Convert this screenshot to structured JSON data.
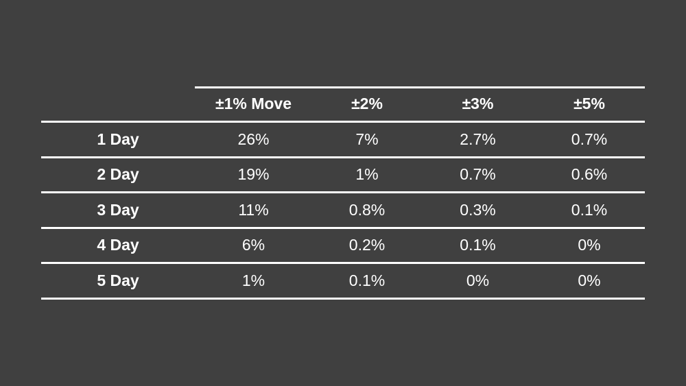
{
  "table": {
    "headers": [
      "",
      "±1% Move",
      "±2%",
      "±3%",
      "±5%"
    ],
    "rows": [
      {
        "label": "1 Day",
        "values": [
          "26%",
          "7%",
          "2.7%",
          "0.7%"
        ]
      },
      {
        "label": "2 Day",
        "values": [
          "19%",
          "1%",
          "0.7%",
          "0.6%"
        ]
      },
      {
        "label": "3 Day",
        "values": [
          "11%",
          "0.8%",
          "0.3%",
          "0.1%"
        ]
      },
      {
        "label": "4 Day",
        "values": [
          "6%",
          "0.2%",
          "0.1%",
          "0%"
        ]
      },
      {
        "label": "5 Day",
        "values": [
          "1%",
          "0.1%",
          "0%",
          "0%"
        ]
      }
    ]
  }
}
